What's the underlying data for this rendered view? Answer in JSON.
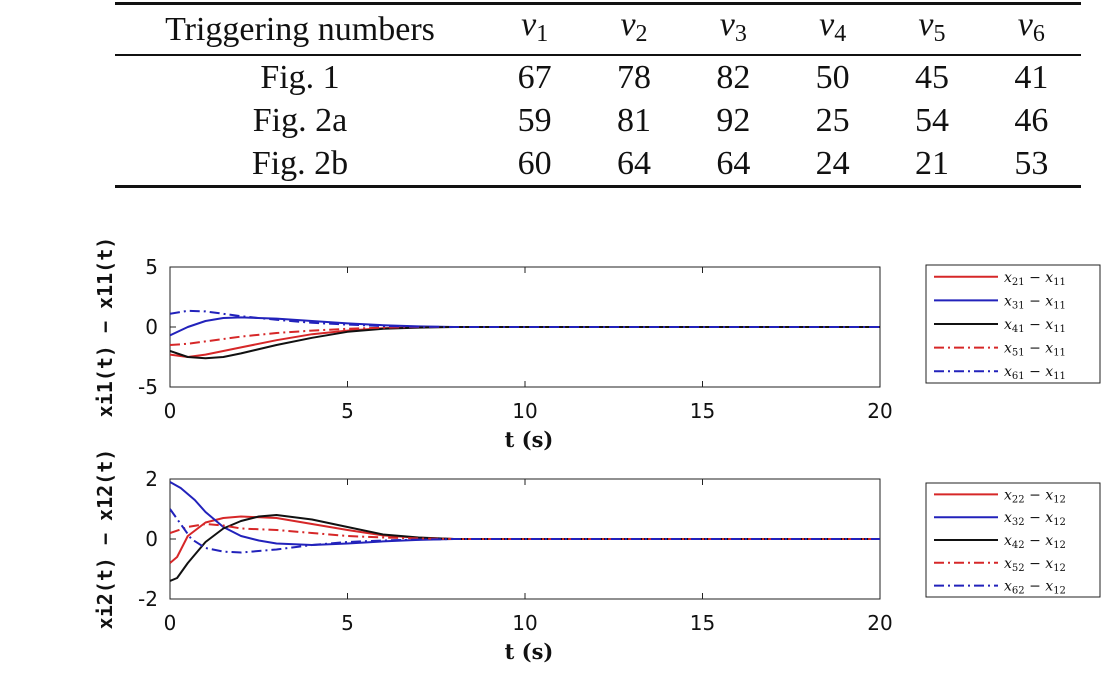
{
  "table": {
    "header": "Triggering numbers",
    "columns": [
      "v1",
      "v2",
      "v3",
      "v4",
      "v5",
      "v6"
    ],
    "rows": [
      {
        "label": "Fig. 1",
        "values": [
          "67",
          "78",
          "82",
          "50",
          "45",
          "41"
        ]
      },
      {
        "label": "Fig. 2a",
        "values": [
          "59",
          "81",
          "92",
          "25",
          "54",
          "46"
        ]
      },
      {
        "label": "Fig. 2b",
        "values": [
          "60",
          "64",
          "64",
          "24",
          "21",
          "53"
        ]
      }
    ]
  },
  "chart_data": [
    {
      "type": "line",
      "title": "",
      "xlabel": "t (s)",
      "ylabel": "xi1(t) − x11(t)",
      "xlim": [
        0,
        20
      ],
      "ylim": [
        -5,
        5
      ],
      "xticks": [
        "0",
        "5",
        "10",
        "15",
        "20"
      ],
      "yticks": [
        "5",
        "0",
        "-5"
      ],
      "legend_position": "right",
      "series": [
        {
          "name": "x21 − x11",
          "color": "#d62728",
          "style": "solid",
          "x": [
            0,
            0.5,
            1,
            1.5,
            2,
            3,
            4,
            5,
            6,
            7,
            8,
            20
          ],
          "y": [
            -2.3,
            -2.5,
            -2.3,
            -2.0,
            -1.7,
            -1.1,
            -0.6,
            -0.3,
            -0.1,
            0,
            0,
            0
          ]
        },
        {
          "name": "x31 − x11",
          "color": "#2222bb",
          "style": "solid",
          "x": [
            0,
            0.5,
            1,
            1.5,
            2,
            3,
            4,
            5,
            6,
            7,
            8,
            20
          ],
          "y": [
            -0.7,
            0.0,
            0.5,
            0.75,
            0.8,
            0.7,
            0.5,
            0.3,
            0.15,
            0.05,
            0,
            0
          ]
        },
        {
          "name": "x41 − x11",
          "color": "#111111",
          "style": "solid",
          "x": [
            0,
            0.5,
            1,
            1.5,
            2,
            3,
            4,
            5,
            6,
            7,
            8,
            20
          ],
          "y": [
            -2.0,
            -2.5,
            -2.6,
            -2.5,
            -2.2,
            -1.5,
            -0.9,
            -0.4,
            -0.15,
            -0.05,
            0,
            0
          ]
        },
        {
          "name": "x51 − x11",
          "color": "#d62728",
          "style": "dashdot",
          "x": [
            0,
            0.5,
            1,
            1.5,
            2,
            3,
            4,
            5,
            6,
            7,
            8,
            20
          ],
          "y": [
            -1.5,
            -1.4,
            -1.2,
            -1.0,
            -0.8,
            -0.5,
            -0.3,
            -0.15,
            -0.05,
            0,
            0,
            0
          ]
        },
        {
          "name": "x61 − x11",
          "color": "#2222bb",
          "style": "dashdot",
          "x": [
            0,
            0.5,
            1,
            1.5,
            2,
            3,
            4,
            5,
            6,
            7,
            8,
            20
          ],
          "y": [
            1.1,
            1.35,
            1.3,
            1.1,
            0.9,
            0.6,
            0.35,
            0.2,
            0.08,
            0.02,
            0,
            0
          ]
        }
      ]
    },
    {
      "type": "line",
      "title": "",
      "xlabel": "t (s)",
      "ylabel": "xi2(t) − x12(t)",
      "xlim": [
        0,
        20
      ],
      "ylim": [
        -2,
        2
      ],
      "xticks": [
        "0",
        "5",
        "10",
        "15",
        "20"
      ],
      "yticks": [
        "2",
        "0",
        "-2"
      ],
      "legend_position": "right",
      "series": [
        {
          "name": "x22 − x12",
          "color": "#d62728",
          "style": "solid",
          "x": [
            0,
            0.2,
            0.5,
            1,
            1.5,
            2,
            3,
            4,
            5,
            6,
            7,
            8,
            20
          ],
          "y": [
            -0.8,
            -0.6,
            0.1,
            0.55,
            0.7,
            0.75,
            0.7,
            0.5,
            0.3,
            0.12,
            0.04,
            0,
            0
          ]
        },
        {
          "name": "x32 − x12",
          "color": "#2222bb",
          "style": "solid",
          "x": [
            0,
            0.3,
            0.7,
            1,
            1.5,
            2,
            2.5,
            3,
            4,
            5,
            6,
            7,
            8,
            20
          ],
          "y": [
            1.9,
            1.7,
            1.3,
            0.9,
            0.4,
            0.1,
            -0.05,
            -0.15,
            -0.2,
            -0.15,
            -0.08,
            -0.03,
            0,
            0
          ]
        },
        {
          "name": "x42 − x12",
          "color": "#111111",
          "style": "solid",
          "x": [
            0,
            0.2,
            0.5,
            1,
            1.5,
            2,
            2.5,
            3,
            4,
            5,
            6,
            7,
            8,
            20
          ],
          "y": [
            -1.4,
            -1.3,
            -0.8,
            -0.1,
            0.35,
            0.6,
            0.75,
            0.8,
            0.65,
            0.4,
            0.15,
            0.05,
            0,
            0
          ]
        },
        {
          "name": "x52 − x12",
          "color": "#d62728",
          "style": "dashdot",
          "x": [
            0,
            0.5,
            1,
            1.5,
            2,
            3,
            4,
            5,
            6,
            7,
            8,
            20
          ],
          "y": [
            0.2,
            0.4,
            0.5,
            0.45,
            0.35,
            0.3,
            0.2,
            0.1,
            0.05,
            0.02,
            0,
            0
          ]
        },
        {
          "name": "x62 − x12",
          "color": "#2222bb",
          "style": "dashdot",
          "x": [
            0,
            0.3,
            0.6,
            1,
            1.5,
            2,
            3,
            4,
            5,
            6,
            7,
            8,
            20
          ],
          "y": [
            1.0,
            0.5,
            0.0,
            -0.3,
            -0.42,
            -0.45,
            -0.35,
            -0.2,
            -0.1,
            -0.05,
            -0.02,
            0,
            0
          ]
        }
      ]
    }
  ]
}
